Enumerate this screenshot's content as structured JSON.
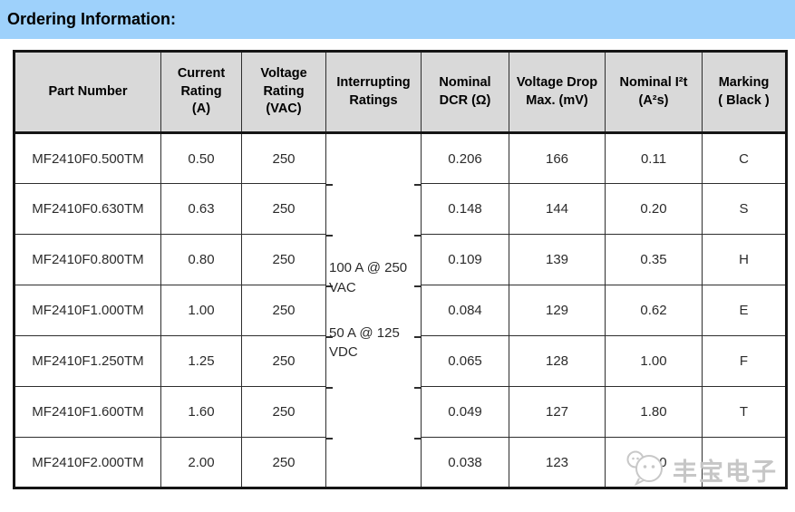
{
  "title": "Ordering Information:",
  "colors": {
    "banner_background": "#9ed1fb",
    "table_header_background": "#d9d9d9",
    "outer_border": "#151515",
    "inner_border": "#2e2e2e",
    "text": "#2b2b2b",
    "watermark": "#c6c6c6"
  },
  "table": {
    "columns": [
      {
        "key": "part_number",
        "label": "Part Number"
      },
      {
        "key": "current_rating",
        "label": "Current\nRating\n(A)"
      },
      {
        "key": "voltage_rating",
        "label": "Voltage\nRating\n(VAC)"
      },
      {
        "key": "interrupting",
        "label": "Interrupting\nRatings",
        "merged": true
      },
      {
        "key": "nominal_dcr",
        "label": "Nominal\nDCR (Ω)"
      },
      {
        "key": "voltage_drop_max",
        "label": "Voltage Drop\nMax. (mV)"
      },
      {
        "key": "nominal_i2t",
        "label": "Nominal I²t\n(A²s)"
      },
      {
        "key": "marking",
        "label": "Marking\n( Black )"
      }
    ],
    "interrupting_ratings": [
      "100 A @ 250 VAC",
      "50 A @ 125 VDC"
    ],
    "rows": [
      {
        "part_number": "MF2410F0.500TM",
        "current_rating": "0.50",
        "voltage_rating": "250",
        "nominal_dcr": "0.206",
        "voltage_drop_max": "166",
        "nominal_i2t": "0.11",
        "marking": "C"
      },
      {
        "part_number": "MF2410F0.630TM",
        "current_rating": "0.63",
        "voltage_rating": "250",
        "nominal_dcr": "0.148",
        "voltage_drop_max": "144",
        "nominal_i2t": "0.20",
        "marking": "S"
      },
      {
        "part_number": "MF2410F0.800TM",
        "current_rating": "0.80",
        "voltage_rating": "250",
        "nominal_dcr": "0.109",
        "voltage_drop_max": "139",
        "nominal_i2t": "0.35",
        "marking": "H"
      },
      {
        "part_number": "MF2410F1.000TM",
        "current_rating": "1.00",
        "voltage_rating": "250",
        "nominal_dcr": "0.084",
        "voltage_drop_max": "129",
        "nominal_i2t": "0.62",
        "marking": "E"
      },
      {
        "part_number": "MF2410F1.250TM",
        "current_rating": "1.25",
        "voltage_rating": "250",
        "nominal_dcr": "0.065",
        "voltage_drop_max": "128",
        "nominal_i2t": "1.00",
        "marking": "F"
      },
      {
        "part_number": "MF2410F1.600TM",
        "current_rating": "1.60",
        "voltage_rating": "250",
        "nominal_dcr": "0.049",
        "voltage_drop_max": "127",
        "nominal_i2t": "1.80",
        "marking": "T"
      },
      {
        "part_number": "MF2410F2.000TM",
        "current_rating": "2.00",
        "voltage_rating": "250",
        "nominal_dcr": "0.038",
        "voltage_drop_max": "123",
        "nominal_i2t": "3.00",
        "marking": ""
      }
    ]
  },
  "watermark": {
    "text": "丰宝电子",
    "icon": "wechat-chat-bubbles-icon"
  }
}
